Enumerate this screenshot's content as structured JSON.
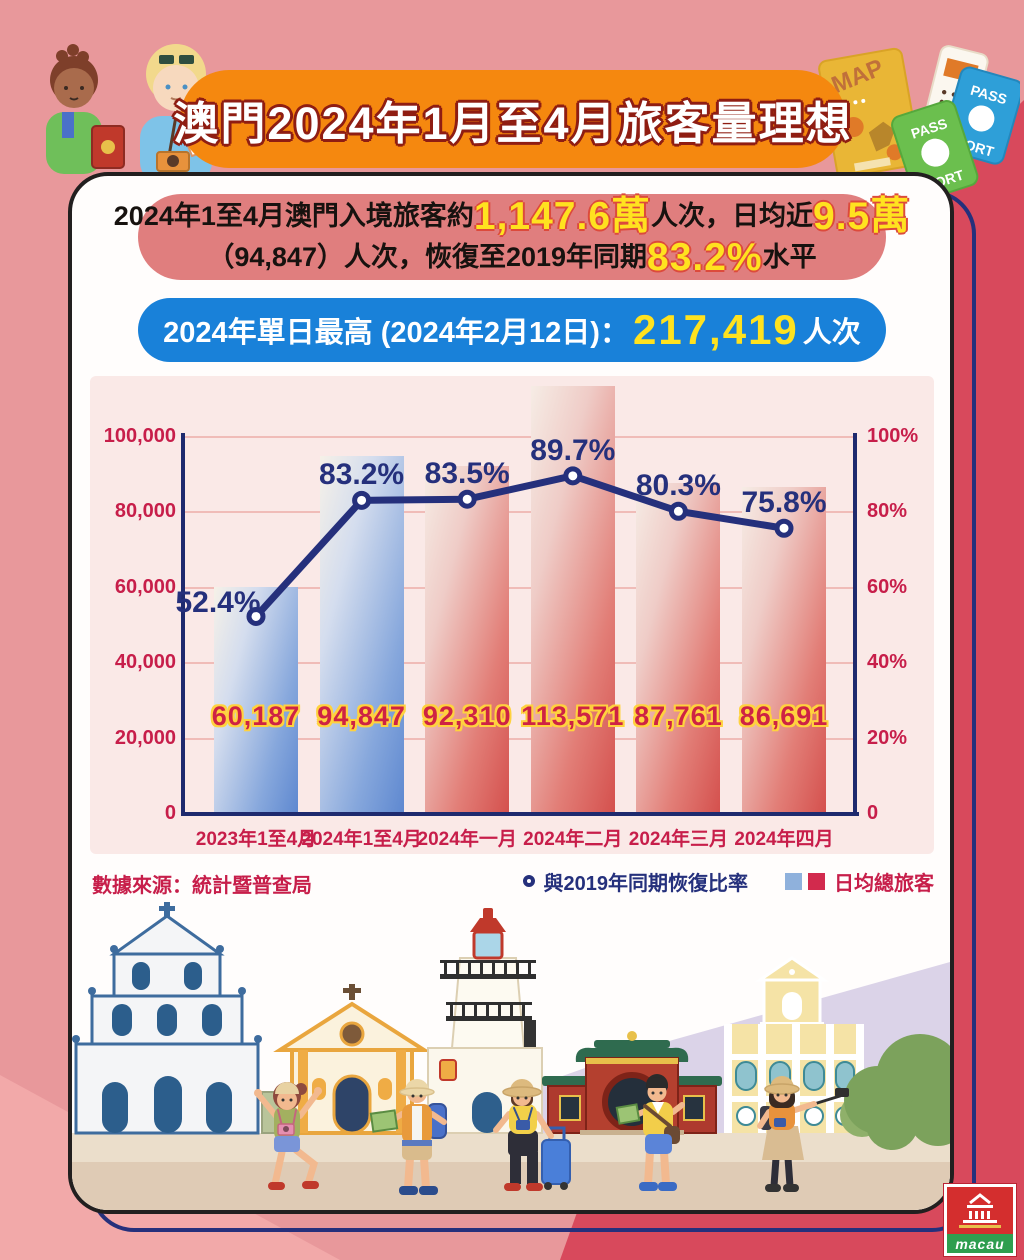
{
  "page": {
    "title": "澳門2024年1月至4月旅客量理想"
  },
  "summary": {
    "line1_prefix": "2024年1至4月澳門入境旅客約",
    "line1_big1": "1,147.6萬",
    "line1_mid": "人次，日均近",
    "line1_big2": "9.5萬",
    "line2_prefix": "（94,847）人次，恢復至2019年同期",
    "line2_big": "83.2%",
    "line2_suffix": "水平"
  },
  "record": {
    "prefix": "2024年單日最高 (2024年2月12日)：",
    "value": "217,419",
    "suffix": "人次"
  },
  "chart_data": {
    "type": "bar+line",
    "title": "",
    "categories": [
      "2023年1至4月",
      "2024年1至4月",
      "2024年一月",
      "2024年二月",
      "2024年三月",
      "2024年四月"
    ],
    "series": [
      {
        "name": "日均總旅客",
        "type": "bar",
        "values": [
          60187,
          94847,
          92310,
          113571,
          87761,
          86691
        ],
        "labels": [
          "60,187",
          "94,847",
          "92,310",
          "113,571",
          "87,761",
          "86,691"
        ],
        "bar_styles": [
          "blue",
          "blue",
          "red",
          "red",
          "red",
          "red"
        ]
      },
      {
        "name": "與2019年同期恢復比率",
        "type": "line",
        "values": [
          52.4,
          83.2,
          83.5,
          89.7,
          80.3,
          75.8
        ],
        "labels": [
          "52.4%",
          "83.2%",
          "83.5%",
          "89.7%",
          "80.3%",
          "75.8%"
        ]
      }
    ],
    "left_axis": {
      "max": 100000,
      "ticks": [
        "0",
        "20,000",
        "40,000",
        "60,000",
        "80,000",
        "100,000"
      ]
    },
    "right_axis": {
      "max": 100,
      "ticks": [
        "0",
        "20%",
        "40%",
        "60%",
        "80%",
        "100%"
      ]
    },
    "grid": true,
    "legend_position": "bottom-right"
  },
  "footer": {
    "source": "數據來源：統計暨普查局",
    "legend_line": "與2019年同期恢復比率",
    "legend_bar": "日均總旅客"
  },
  "decor": {
    "map_label": "MAP",
    "passport_line1": "PASS",
    "passport_line2": "PORT",
    "logo_text": "macau"
  },
  "colors": {
    "background": "#e8989b",
    "background_accent": "#d8495c",
    "background_light": "#f2a9a9",
    "banner_orange": "#f5880f",
    "summary_pill": "#e07e7e",
    "record_pill": "#1981d9",
    "highlight_yellow": "#ffe21f",
    "chart_panel": "#fae9e7",
    "bar_blue": "#5e88d0",
    "bar_red": "#d4504d",
    "line_navy": "#25307c",
    "axis_crimson": "#c71e4a",
    "value_label_red": "#ce2344",
    "value_label_outline": "#ffd23e"
  }
}
